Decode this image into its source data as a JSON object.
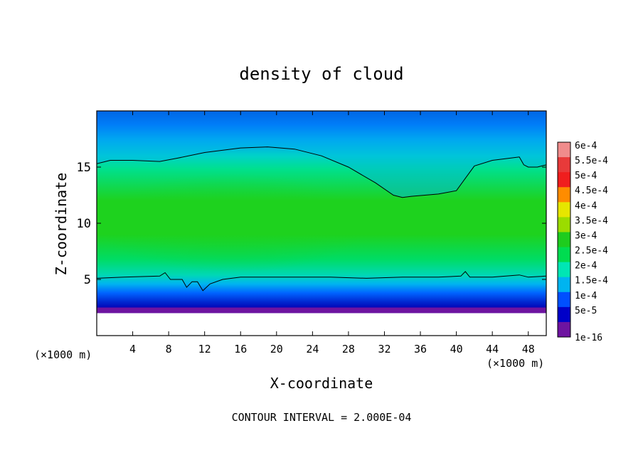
{
  "chart_data": {
    "type": "heatmap",
    "title": "density of cloud",
    "xlabel": "X-coordinate",
    "ylabel": "Z-coordinate",
    "x_unit_left": "(×1000 m)",
    "x_unit_right": "(×1000 m)",
    "footer": "CONTOUR INTERVAL = 2.000E-04",
    "xlim": [
      0,
      50
    ],
    "ylim": [
      0,
      20
    ],
    "x_ticks": [
      4,
      8,
      12,
      16,
      20,
      24,
      28,
      32,
      36,
      40,
      44,
      48
    ],
    "x_tick_labels": [
      "4",
      "8",
      "12",
      "16",
      "20",
      "24",
      "28",
      "32",
      "36",
      "40",
      "44",
      "48"
    ],
    "y_ticks": [
      5,
      10,
      15
    ],
    "y_tick_labels": [
      "5",
      "10",
      "15"
    ],
    "colorbar": {
      "labels": [
        "6e-4",
        "5.5e-4",
        "5e-4",
        "4.5e-4",
        "4e-4",
        "3.5e-4",
        "3e-4",
        "2.5e-4",
        "2e-4",
        "1.5e-4",
        "1e-4",
        "5e-5",
        "1e-16"
      ],
      "colors": [
        "#f08c8c",
        "#e83a3a",
        "#f01e1e",
        "#ff8c00",
        "#e6e600",
        "#9bdc00",
        "#1ecc1e",
        "#00dc50",
        "#00e6b4",
        "#00b4f0",
        "#0050ff",
        "#0000c8",
        "#6e14a0"
      ]
    },
    "contour_2e-4": {
      "upper": [
        [
          0,
          15.3
        ],
        [
          1.5,
          15.6
        ],
        [
          4,
          15.6
        ],
        [
          7,
          15.5
        ],
        [
          9,
          15.8
        ],
        [
          12,
          16.3
        ],
        [
          16,
          16.7
        ],
        [
          19,
          16.8
        ],
        [
          22,
          16.6
        ],
        [
          25,
          16.0
        ],
        [
          28,
          15.0
        ],
        [
          31,
          13.6
        ],
        [
          33,
          12.5
        ],
        [
          34,
          12.3
        ],
        [
          35,
          12.4
        ],
        [
          38,
          12.6
        ],
        [
          40,
          12.9
        ],
        [
          41,
          14.0
        ],
        [
          42,
          15.1
        ],
        [
          44,
          15.6
        ],
        [
          46,
          15.8
        ],
        [
          47,
          15.9
        ],
        [
          47.5,
          15.2
        ],
        [
          48,
          15.0
        ],
        [
          49,
          15.0
        ],
        [
          50,
          15.2
        ]
      ],
      "lower": [
        [
          0,
          5.1
        ],
        [
          3,
          5.2
        ],
        [
          7,
          5.3
        ],
        [
          7.6,
          5.6
        ],
        [
          8.2,
          5.0
        ],
        [
          9.5,
          5.0
        ],
        [
          10,
          4.3
        ],
        [
          10.6,
          4.8
        ],
        [
          11.2,
          4.8
        ],
        [
          11.8,
          4.0
        ],
        [
          12.6,
          4.6
        ],
        [
          14,
          5.0
        ],
        [
          16,
          5.2
        ],
        [
          19,
          5.2
        ],
        [
          22,
          5.2
        ],
        [
          26,
          5.2
        ],
        [
          30,
          5.1
        ],
        [
          34,
          5.2
        ],
        [
          38,
          5.2
        ],
        [
          40.5,
          5.3
        ],
        [
          41,
          5.7
        ],
        [
          41.5,
          5.2
        ],
        [
          44,
          5.2
        ],
        [
          47,
          5.4
        ],
        [
          48,
          5.2
        ],
        [
          50,
          5.3
        ]
      ]
    }
  }
}
